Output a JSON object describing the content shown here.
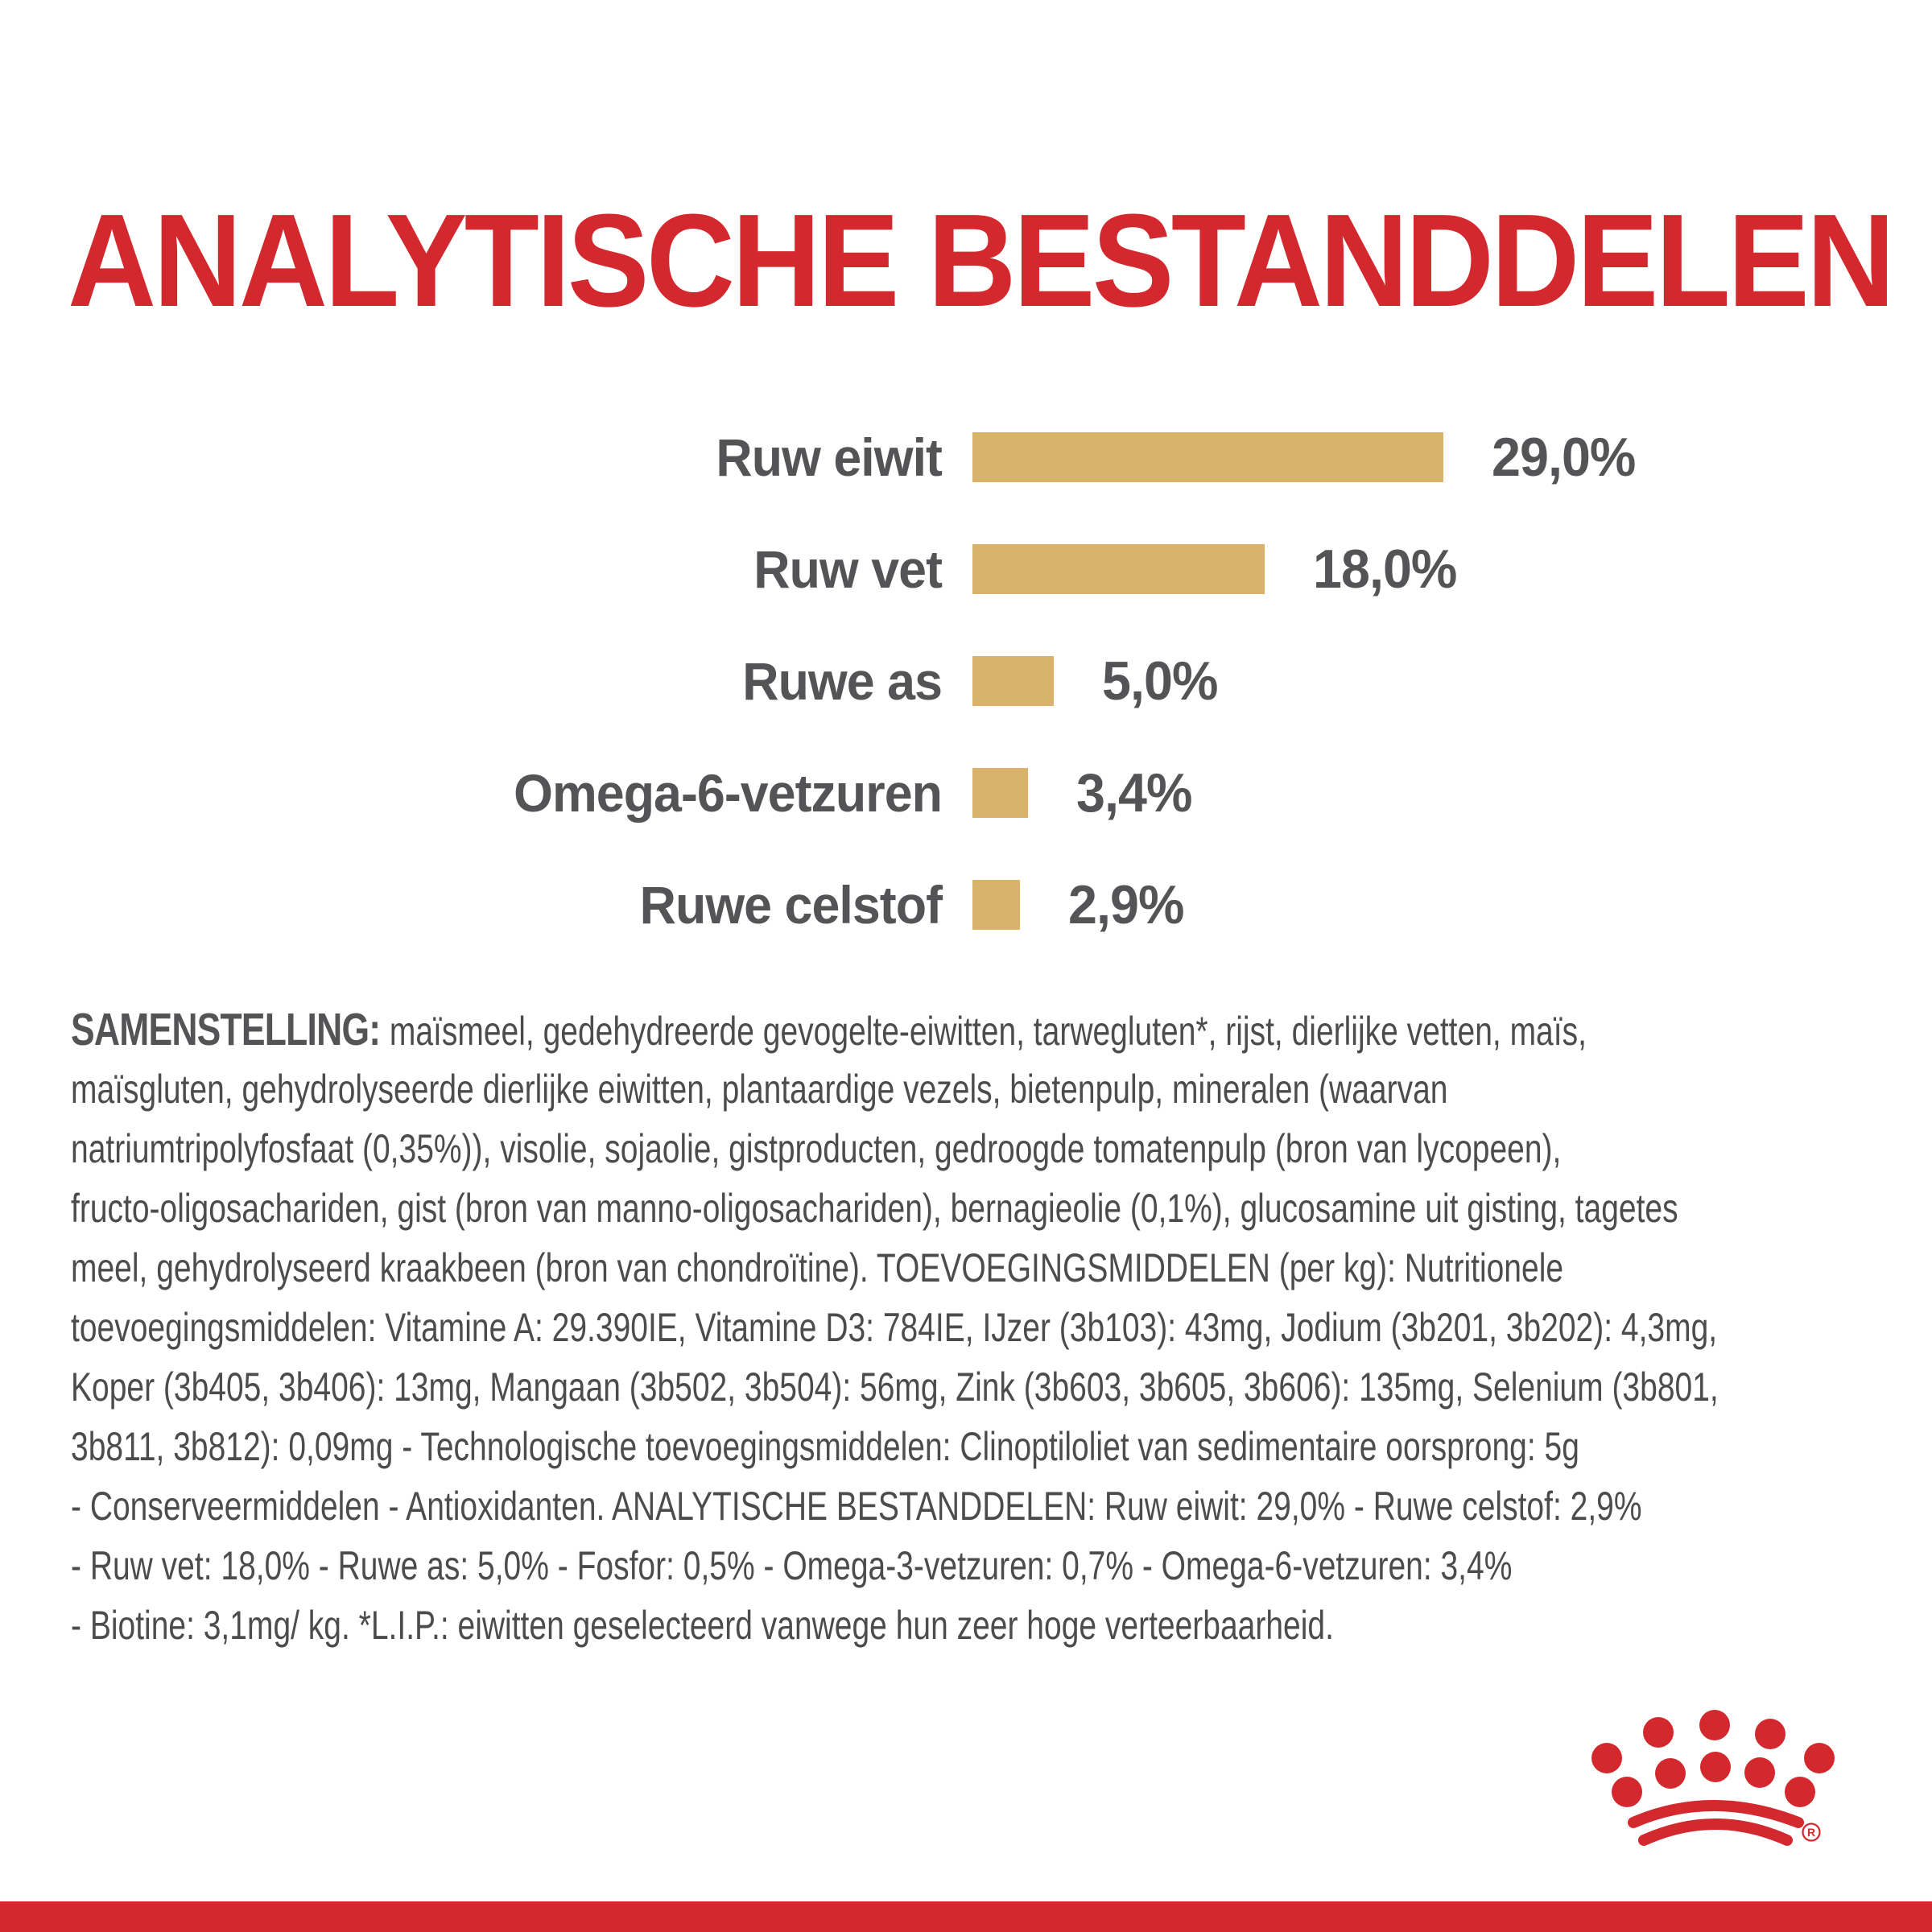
{
  "title": "ANALYTISCHE BESTANDDELEN",
  "chart_data": {
    "type": "bar",
    "orientation": "horizontal",
    "title": "ANALYTISCHE BESTANDDELEN",
    "categories": [
      "Ruw eiwit",
      "Ruw vet",
      "Ruwe as",
      "Omega-6-vetzuren",
      "Ruwe celstof"
    ],
    "values": [
      29.0,
      18.0,
      5.0,
      3.4,
      2.9
    ],
    "value_labels": [
      "29,0%",
      "18,0%",
      "5,0%",
      "3,4%",
      "2,9%"
    ],
    "unit": "%",
    "xlim": [
      0,
      29
    ],
    "grid": false,
    "legend": false,
    "bar_color": "#D9B26C",
    "label_color": "#545456"
  },
  "composition": {
    "label": "SAMENSTELLING:",
    "lines": [
      "maïsmeel, gedehydreerde gevogelte-eiwitten, tarwegluten*, rijst, dierlijke vetten, maïs,",
      "maïsgluten, gehydrolyseerde dierlijke eiwitten, plantaardige vezels, bietenpulp, mineralen (waarvan",
      "natriumtripolyfosfaat (0,35%)), visolie, sojaolie, gistproducten, gedroogde tomatenpulp (bron van lycopeen),",
      "fructo-oligosachariden, gist (bron van manno-oligosachariden), bernagieolie (0,1%), glucosamine uit gisting, tagetes",
      "meel, gehydrolyseerd kraakbeen (bron van chondroïtine). TOEVOEGINGSMIDDELEN (per kg): Nutritionele",
      "toevoegingsmiddelen: Vitamine A: 29.390IE, Vitamine D3: 784IE, IJzer (3b103): 43mg, Jodium (3b201, 3b202): 4,3mg,",
      "Koper (3b405, 3b406): 13mg, Mangaan (3b502, 3b504): 56mg, Zink (3b603, 3b605, 3b606): 135mg, Selenium (3b801,",
      "3b811, 3b812): 0,09mg - Technologische toevoegingsmiddelen: Clinoptiloliet van sedimentaire oorsprong: 5g",
      "- Conserveermiddelen - Antioxidanten. ANALYTISCHE BESTANDDELEN: Ruw eiwit: 29,0% - Ruwe celstof: 2,9%",
      "- Ruw vet: 18,0% - Ruwe as: 5,0% - Fosfor: 0,5% - Omega-3-vetzuren: 0,7% - Omega-6-vetzuren: 3,4%",
      "- Biotine: 3,1mg/ kg. *L.I.P.: eiwitten geselecteerd vanwege hun zeer hoge verteerbaarheid."
    ]
  },
  "footer": {
    "trademark_symbol": "®"
  },
  "colors": {
    "accent_red": "#D3292E",
    "bar_gold": "#D9B26C",
    "label_gray": "#545456",
    "body_gray": "#4C4C4E"
  }
}
